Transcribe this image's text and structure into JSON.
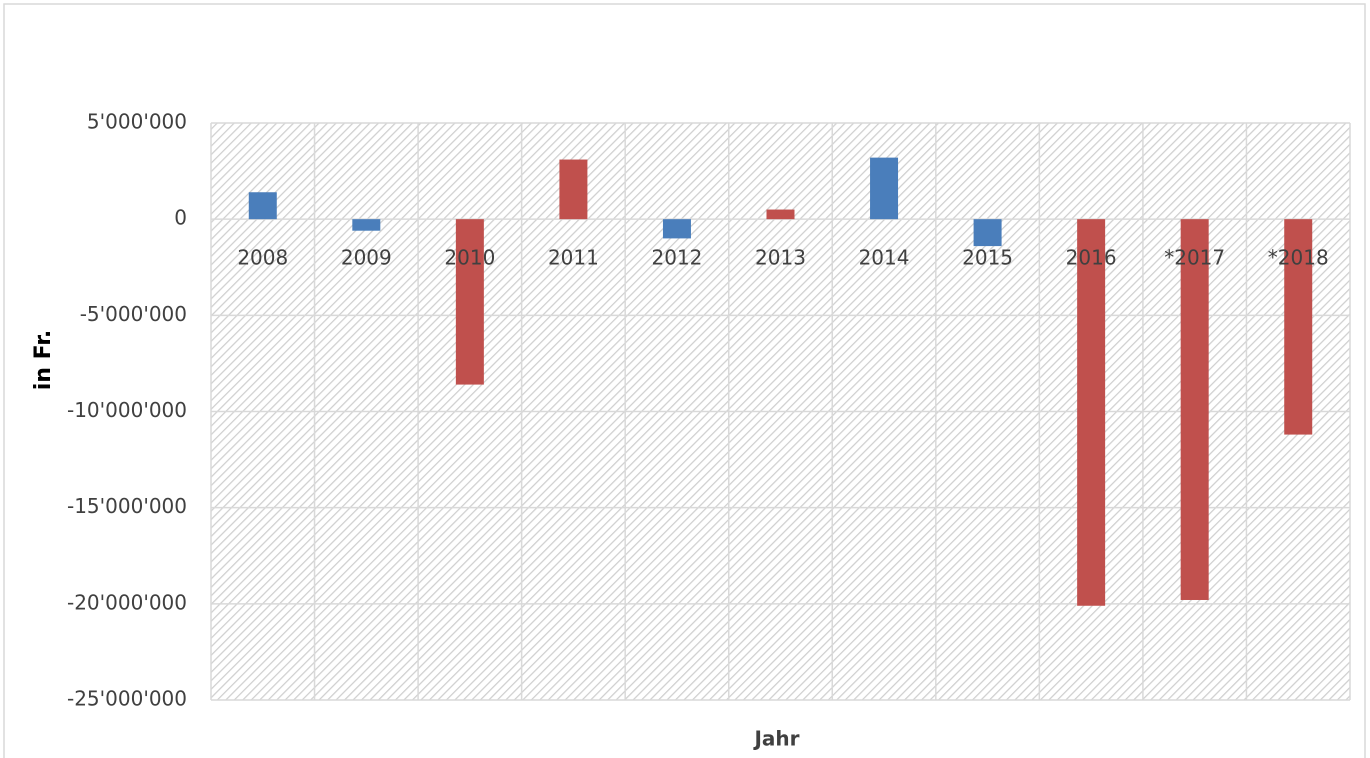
{
  "chart_data": {
    "type": "bar",
    "x_label": "Jahr",
    "y_label": "in Fr.",
    "categories": [
      "2008",
      "2009",
      "2010",
      "2011",
      "2012",
      "2013",
      "2014",
      "2015",
      "2016",
      "*2017",
      "*2018"
    ],
    "values": [
      1400000,
      -600000,
      -8600000,
      3100000,
      -1000000,
      500000,
      3200000,
      -1400000,
      -20100000,
      -19800000,
      -11200000
    ],
    "colors": [
      "#4a7ebb",
      "#4a7ebb",
      "#c0504d",
      "#c0504d",
      "#4a7ebb",
      "#c0504d",
      "#4a7ebb",
      "#4a7ebb",
      "#c0504d",
      "#c0504d",
      "#c0504d"
    ],
    "ylim": [
      -25000000,
      5000000
    ],
    "yticks": [
      {
        "value": -25000000,
        "label": "-25'000'000"
      },
      {
        "value": -20000000,
        "label": "-20'000'000"
      },
      {
        "value": -15000000,
        "label": "-15'000'000"
      },
      {
        "value": -10000000,
        "label": "-10'000'000"
      },
      {
        "value": -5000000,
        "label": "-5'000'000"
      },
      {
        "value": 0,
        "label": "0"
      },
      {
        "value": 5000000,
        "label": "5'000'000"
      }
    ],
    "grid": true
  }
}
